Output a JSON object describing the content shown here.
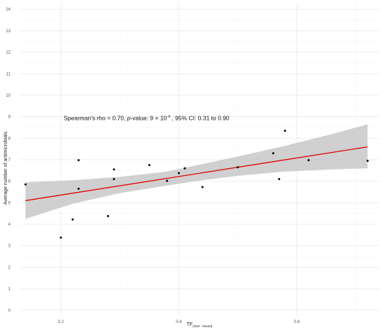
{
  "chart_data": {
    "type": "scatter",
    "title": "",
    "xlabel": "TF",
    "xlabel_subscript": "(start - based)",
    "ylabel": "Average number of antimicrobials",
    "xlim": [
      0.13,
      0.74
    ],
    "ylim": [
      -0.3,
      14.3
    ],
    "x_ticks": [
      0.2,
      0.4,
      0.6
    ],
    "x_tick_labels": [
      "0.2",
      "0.4",
      "0.6"
    ],
    "y_ticks": [
      0,
      1,
      2,
      3,
      4,
      5,
      6,
      7,
      8,
      9,
      10,
      11,
      12,
      13,
      14
    ],
    "y_tick_labels": [
      "0",
      "1",
      "2",
      "3",
      "4",
      "5",
      "6",
      "7",
      "8",
      "9",
      "10",
      "11",
      "12",
      "13",
      "14"
    ],
    "grid": true,
    "points": [
      {
        "x": 0.14,
        "y": 5.85
      },
      {
        "x": 0.2,
        "y": 3.38
      },
      {
        "x": 0.22,
        "y": 4.22
      },
      {
        "x": 0.23,
        "y": 5.65
      },
      {
        "x": 0.23,
        "y": 6.98
      },
      {
        "x": 0.28,
        "y": 4.38
      },
      {
        "x": 0.29,
        "y": 6.55
      },
      {
        "x": 0.29,
        "y": 6.1
      },
      {
        "x": 0.35,
        "y": 6.75
      },
      {
        "x": 0.38,
        "y": 6.02
      },
      {
        "x": 0.4,
        "y": 6.38
      },
      {
        "x": 0.41,
        "y": 6.6
      },
      {
        "x": 0.44,
        "y": 5.73
      },
      {
        "x": 0.5,
        "y": 6.65
      },
      {
        "x": 0.56,
        "y": 7.3
      },
      {
        "x": 0.57,
        "y": 6.1
      },
      {
        "x": 0.58,
        "y": 8.35
      },
      {
        "x": 0.62,
        "y": 6.98
      },
      {
        "x": 0.72,
        "y": 6.95
      }
    ],
    "fit": {
      "x": [
        0.14,
        0.72
      ],
      "y": [
        5.1,
        7.6
      ],
      "color": "#e00000"
    },
    "ci_band": {
      "x": [
        0.14,
        0.22,
        0.3,
        0.38,
        0.44,
        0.5,
        0.58,
        0.66,
        0.72
      ],
      "upper": [
        5.95,
        6.05,
        6.2,
        6.45,
        6.8,
        7.15,
        7.65,
        8.2,
        8.65
      ],
      "lower": [
        4.25,
        4.95,
        5.45,
        5.8,
        6.05,
        6.25,
        6.45,
        6.55,
        6.6
      ],
      "color": "#c8c8c8"
    },
    "point_color": "#000000",
    "annotation": {
      "prefix": "Spearman's rho = 0.70, ",
      "pvalue_label": "p",
      "pvalue_text": "-value: 9 × 10",
      "exponent": "-4",
      "suffix": " , 95% CI: 0.31 to 0.90",
      "x": 0.13,
      "y": 8.9
    }
  }
}
